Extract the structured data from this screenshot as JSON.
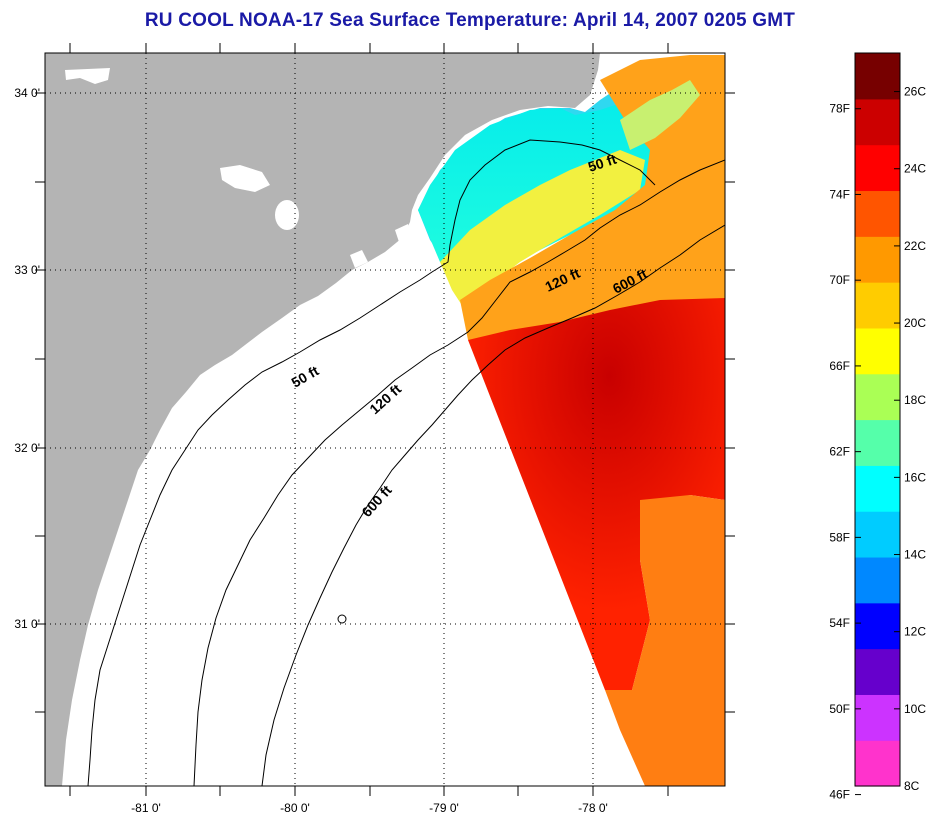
{
  "title": "RU COOL  NOAA-17  Sea Surface Temperature:  April 14, 2007 0205 GMT",
  "map": {
    "lon_labels": [
      "-81 0'",
      "-80 0'",
      "-79 0'",
      "-78 0'"
    ],
    "lat_labels": [
      "34 0'",
      "33 0'",
      "32 0'",
      "31 0'"
    ],
    "contour_labels": [
      {
        "text": "50 ft",
        "id": "contour-label-50ft-north"
      },
      {
        "text": "120 ft",
        "id": "contour-label-120ft-north"
      },
      {
        "text": "600 ft",
        "id": "contour-label-600ft-north"
      },
      {
        "text": "50 ft",
        "id": "contour-label-50ft-south"
      },
      {
        "text": "120 ft",
        "id": "contour-label-120ft-south"
      },
      {
        "text": "600 ft",
        "id": "contour-label-600ft-south"
      }
    ]
  },
  "colorbar": {
    "fahrenheit_labels": [
      "78F",
      "74F",
      "70F",
      "66F",
      "62F",
      "58F",
      "54F",
      "50F",
      "46F"
    ],
    "celsius_labels": [
      "26C",
      "24C",
      "22C",
      "20C",
      "18C",
      "16C",
      "14C",
      "12C",
      "10C",
      "8C"
    ],
    "range_c": [
      8,
      27
    ],
    "colors": [
      "#ff33cc",
      "#cc33ff",
      "#6600cc",
      "#0000ff",
      "#0088ff",
      "#00ccff",
      "#00ffff",
      "#55ffaa",
      "#aaff55",
      "#ffff00",
      "#ffcc00",
      "#ff9900",
      "#ff5500",
      "#ff0000",
      "#cc0000",
      "#770000"
    ]
  },
  "legend_colors": {
    "land": "#b4b4b4",
    "no_data": "#ffffff",
    "title": "#1a1aa6"
  }
}
